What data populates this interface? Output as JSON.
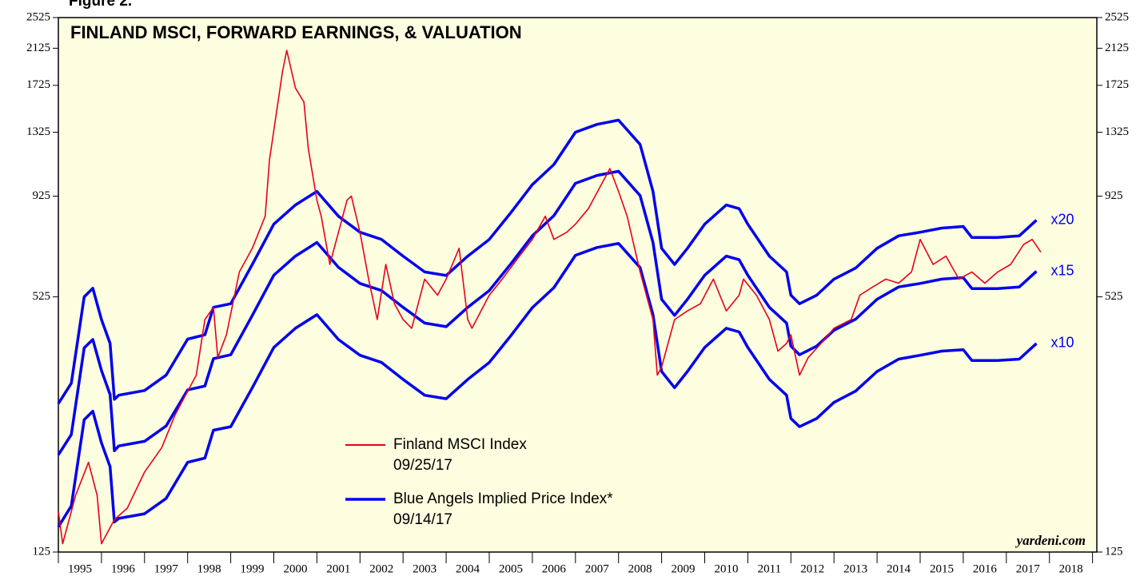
{
  "figure_label": "Figure 2.",
  "chart_data": {
    "type": "line",
    "title": "FINLAND MSCI, FORWARD EARNINGS, & VALUATION",
    "log_y": true,
    "ylim": [
      125,
      2525
    ],
    "yticks": [
      125,
      525,
      925,
      1325,
      1725,
      2125,
      2525
    ],
    "xlim": [
      1995,
      2019.1
    ],
    "xticks": [
      1995,
      1996,
      1997,
      1998,
      1999,
      2000,
      2001,
      2002,
      2003,
      2004,
      2005,
      2006,
      2007,
      2008,
      2009,
      2010,
      2011,
      2012,
      2013,
      2014,
      2015,
      2016,
      2017,
      2018,
      2019
    ],
    "categories": [
      "1995",
      "1996",
      "1997",
      "1998",
      "1999",
      "2000",
      "2001",
      "2002",
      "2003",
      "2004",
      "2005",
      "2006",
      "2007",
      "2008",
      "2009",
      "2010",
      "2011",
      "2012",
      "2013",
      "2014",
      "2015",
      "2016",
      "2017",
      "2018"
    ],
    "legend": [
      {
        "name": "Finland MSCI Index",
        "date": "09/25/17",
        "color": "#e8001c"
      },
      {
        "name": "Blue Angels Implied Price Index*",
        "date": "09/14/17",
        "color": "#0000ee"
      }
    ],
    "source": "yardeni.com",
    "series": [
      {
        "color": "#e8001c",
        "x": [
          1995.0,
          1995.1,
          1995.4,
          1995.7,
          1995.9,
          1996.0,
          1996.3,
          1996.6,
          1997.0,
          1997.4,
          1997.7,
          1997.9,
          1998.2,
          1998.4,
          1998.6,
          1998.7,
          1998.9,
          1999.2,
          1999.5,
          1999.8,
          1999.9,
          2000.2,
          2000.3,
          2000.5,
          2000.7,
          2000.8,
          2001.0,
          2001.1,
          2001.3,
          2001.5,
          2001.7,
          2001.8,
          2002.0,
          2002.2,
          2002.4,
          2002.6,
          2002.8,
          2003.0,
          2003.2,
          2003.5,
          2003.8,
          2004.0,
          2004.3,
          2004.5,
          2004.6,
          2005.0,
          2005.3,
          2005.7,
          2006.0,
          2006.3,
          2006.5,
          2006.8,
          2007.0,
          2007.3,
          2007.6,
          2007.8,
          2008.0,
          2008.2,
          2008.5,
          2008.8,
          2008.9,
          2009.0,
          2009.3,
          2009.6,
          2009.9,
          2010.2,
          2010.5,
          2010.8,
          2010.9,
          2011.2,
          2011.5,
          2011.7,
          2011.9,
          2012.0,
          2012.2,
          2012.4,
          2012.7,
          2013.0,
          2013.4,
          2013.6,
          2013.9,
          2014.2,
          2014.5,
          2014.8,
          2015.0,
          2015.3,
          2015.6,
          2015.9,
          2016.2,
          2016.5,
          2016.8,
          2017.1,
          2017.4,
          2017.6,
          2017.8
        ],
        "values": [
          157,
          131,
          172,
          207,
          172,
          131,
          150,
          160,
          196,
          225,
          269,
          295,
          338,
          462,
          495,
          373,
          424,
          604,
          690,
          826,
          1135,
          1860,
          2100,
          1700,
          1570,
          1210,
          904,
          826,
          630,
          755,
          904,
          925,
          755,
          580,
          462,
          630,
          505,
          462,
          440,
          580,
          530,
          580,
          690,
          462,
          440,
          530,
          580,
          660,
          725,
          826,
          725,
          755,
          790,
          862,
          987,
          1080,
          950,
          826,
          604,
          462,
          338,
          354,
          462,
          485,
          505,
          580,
          485,
          530,
          580,
          530,
          462,
          387,
          404,
          424,
          338,
          373,
          404,
          440,
          462,
          530,
          555,
          580,
          567,
          604,
          725,
          630,
          660,
          580,
          604,
          567,
          604,
          630,
          705,
          725,
          675
        ]
      },
      {
        "color": "#0000ee",
        "label": "x20",
        "x": [
          1995.0,
          1995.3,
          1995.6,
          1995.8,
          1996.0,
          1996.2,
          1996.3,
          1996.4,
          1997.0,
          1997.5,
          1998.0,
          1998.4,
          1998.6,
          1999.0,
          1999.5,
          2000.0,
          2000.5,
          2001.0,
          2001.5,
          2002.0,
          2002.5,
          2003.0,
          2003.5,
          2004.0,
          2004.5,
          2005.0,
          2005.5,
          2006.0,
          2006.5,
          2007.0,
          2007.5,
          2008.0,
          2008.5,
          2008.8,
          2009.0,
          2009.3,
          2009.6,
          2010.0,
          2010.5,
          2010.8,
          2011.0,
          2011.5,
          2011.9,
          2012.0,
          2012.2,
          2012.6,
          2013.0,
          2013.5,
          2014.0,
          2014.5,
          2015.0,
          2015.5,
          2016.0,
          2016.2,
          2016.8,
          2017.3,
          2017.7
        ],
        "values": [
          288,
          323,
          525,
          551,
          462,
          404,
          295,
          302,
          310,
          338,
          414,
          424,
          495,
          505,
          630,
          790,
          880,
          950,
          826,
          755,
          725,
          660,
          604,
          592,
          660,
          725,
          843,
          987,
          1105,
          1325,
          1385,
          1418,
          1237,
          950,
          690,
          630,
          690,
          790,
          880,
          862,
          790,
          660,
          604,
          530,
          505,
          530,
          580,
          617,
          690,
          740,
          755,
          773,
          780,
          733,
          733,
          740,
          808
        ]
      },
      {
        "color": "#0000ee",
        "label": "x15",
        "x": [
          1995.0,
          1995.3,
          1995.6,
          1995.8,
          1996.0,
          1996.2,
          1996.3,
          1996.4,
          1997.0,
          1997.5,
          1998.0,
          1998.4,
          1998.6,
          1999.0,
          1999.5,
          2000.0,
          2000.5,
          2001.0,
          2001.5,
          2002.0,
          2002.5,
          2003.0,
          2003.5,
          2004.0,
          2004.5,
          2005.0,
          2005.5,
          2006.0,
          2006.5,
          2007.0,
          2007.5,
          2008.0,
          2008.5,
          2008.8,
          2009.0,
          2009.3,
          2009.6,
          2010.0,
          2010.5,
          2010.8,
          2011.0,
          2011.5,
          2011.9,
          2012.0,
          2012.2,
          2012.6,
          2013.0,
          2013.5,
          2014.0,
          2014.5,
          2015.0,
          2015.5,
          2016.0,
          2016.2,
          2016.8,
          2017.3,
          2017.7
        ],
        "values": [
          216,
          242,
          394,
          413,
          347,
          303,
          221,
          227,
          233,
          254,
          311,
          318,
          371,
          379,
          473,
          593,
          660,
          713,
          620,
          566,
          544,
          495,
          453,
          444,
          495,
          544,
          632,
          740,
          829,
          994,
          1039,
          1064,
          928,
          713,
          518,
          473,
          518,
          593,
          660,
          647,
          593,
          495,
          453,
          398,
          379,
          398,
          435,
          463,
          518,
          555,
          566,
          580,
          585,
          550,
          550,
          555,
          606
        ]
      },
      {
        "color": "#0000ee",
        "label": "x10",
        "x": [
          1995.0,
          1995.3,
          1995.6,
          1995.8,
          1996.0,
          1996.2,
          1996.3,
          1996.4,
          1997.0,
          1997.5,
          1998.0,
          1998.4,
          1998.6,
          1999.0,
          1999.5,
          2000.0,
          2000.5,
          2001.0,
          2001.5,
          2002.0,
          2002.5,
          2003.0,
          2003.5,
          2004.0,
          2004.5,
          2005.0,
          2005.5,
          2006.0,
          2006.5,
          2007.0,
          2007.5,
          2008.0,
          2008.5,
          2008.8,
          2009.0,
          2009.3,
          2009.6,
          2010.0,
          2010.5,
          2010.8,
          2011.0,
          2011.5,
          2011.9,
          2012.0,
          2012.2,
          2012.6,
          2013.0,
          2013.5,
          2014.0,
          2014.5,
          2015.0,
          2015.5,
          2016.0,
          2016.2,
          2016.8,
          2017.3,
          2017.7
        ],
        "values": [
          144,
          162,
          263,
          276,
          231,
          202,
          148,
          151,
          155,
          169,
          207,
          212,
          248,
          253,
          315,
          395,
          440,
          475,
          413,
          378,
          363,
          330,
          302,
          296,
          330,
          363,
          422,
          494,
          553,
          663,
          693,
          709,
          619,
          475,
          345,
          315,
          345,
          395,
          440,
          431,
          395,
          330,
          302,
          265,
          253,
          265,
          290,
          309,
          345,
          370,
          378,
          387,
          390,
          367,
          367,
          370,
          404
        ]
      }
    ]
  }
}
